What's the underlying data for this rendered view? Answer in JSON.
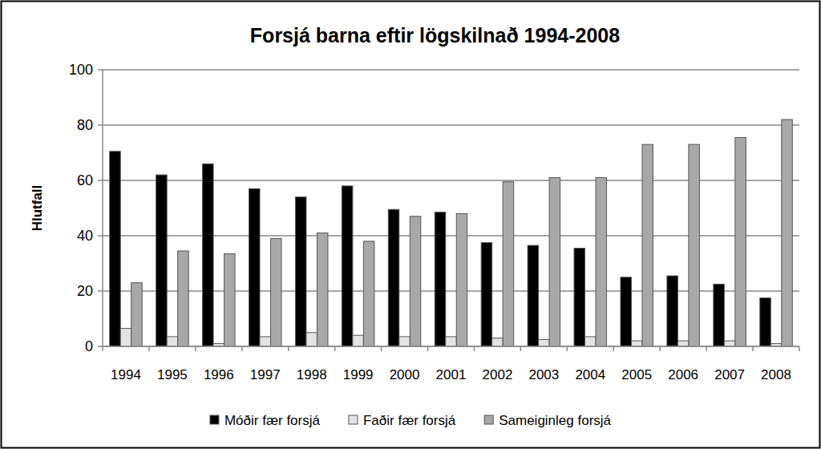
{
  "chart_data": {
    "type": "bar",
    "title": "Forsjá barna eftir lögskilnað 1994-2008",
    "y_label": "Hlutfall",
    "categories": [
      "1994",
      "1995",
      "1996",
      "1997",
      "1998",
      "1999",
      "2000",
      "2001",
      "2002",
      "2003",
      "2004",
      "2005",
      "2006",
      "2007",
      "2008"
    ],
    "series": [
      {
        "name": "Móðir fær forsjá",
        "color": "#000000",
        "values": [
          70.5,
          62,
          66,
          57,
          54,
          58,
          49.5,
          48.5,
          37.5,
          36.5,
          35.5,
          25,
          25.5,
          22.5,
          17.5
        ]
      },
      {
        "name": "Faðir fær forsjá",
        "color": "#e3e3e3",
        "values": [
          6.5,
          3.5,
          1,
          3.5,
          5,
          4,
          3.5,
          3.5,
          3,
          2.5,
          3.5,
          2,
          2,
          2,
          1
        ]
      },
      {
        "name": "Sameiginleg forsjá",
        "color": "#a8a8a8",
        "values": [
          23,
          34.5,
          33.5,
          39,
          41,
          38,
          47,
          48,
          59.5,
          61,
          61,
          73,
          73,
          75.5,
          82
        ]
      }
    ],
    "ylim": [
      0,
      100
    ],
    "yticks": [
      0,
      20,
      40,
      60,
      80,
      100
    ],
    "grid": true,
    "legend": "bottom"
  }
}
